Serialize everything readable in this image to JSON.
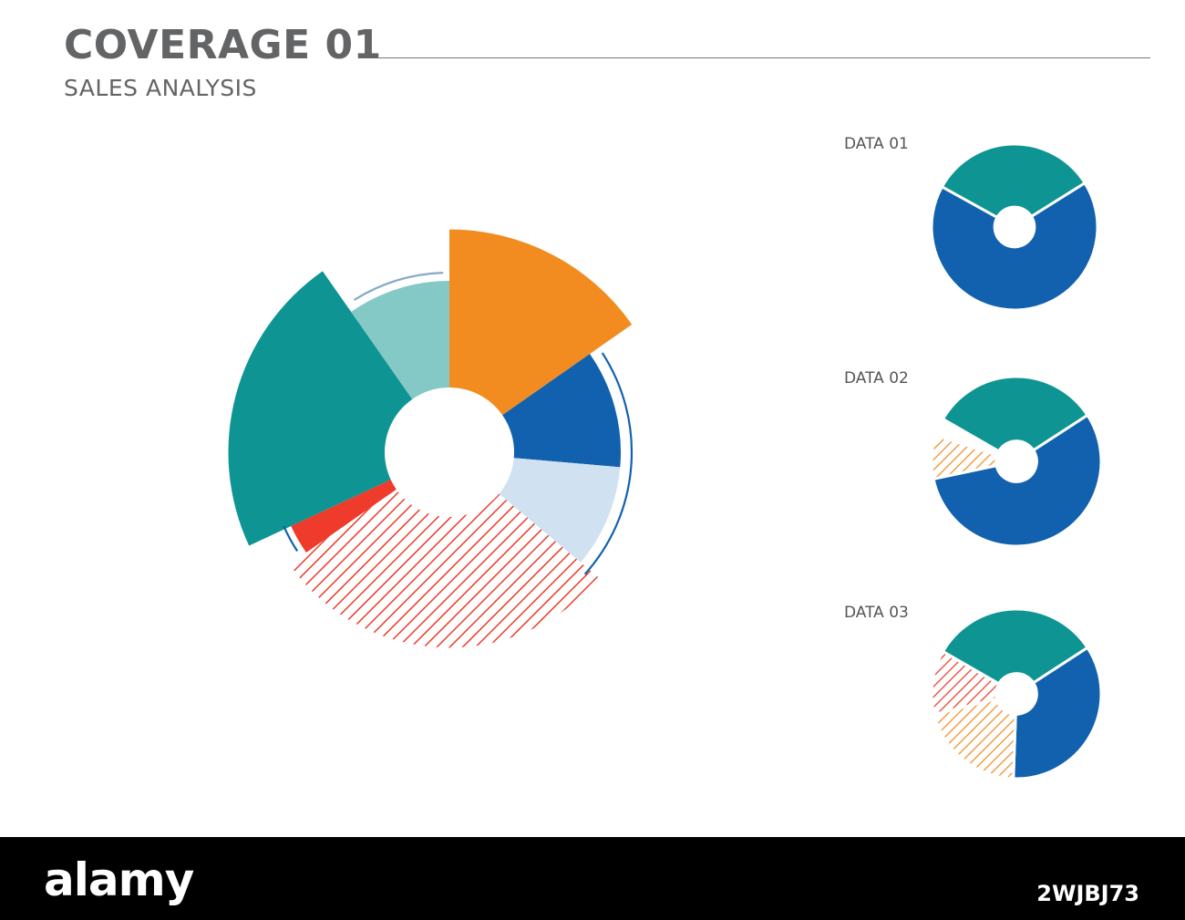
{
  "header": {
    "title": "COVERAGE 01",
    "subtitle": "SALES ANALYSIS"
  },
  "colors": {
    "text": "#636466",
    "orange": "#F28C21",
    "blue": "#1261AE",
    "light_blue": "#D0E2F1",
    "red": "#EE3B2B",
    "teal": "#0E9593",
    "light_teal": "#84C9C5"
  },
  "chart_data": [
    {
      "type": "pie",
      "variant": "polar-area-donut",
      "title": "",
      "slices": [
        {
          "start_deg": 0,
          "end_deg": 55,
          "radius_level": 1.3,
          "color": "#F28C21",
          "pattern": "solid"
        },
        {
          "start_deg": 55,
          "end_deg": 95,
          "radius_level": 1.0,
          "color": "#1261AE",
          "pattern": "solid"
        },
        {
          "start_deg": 95,
          "end_deg": 130,
          "radius_level": 1.0,
          "color": "#D0E2F1",
          "pattern": "solid"
        },
        {
          "start_deg": 130,
          "end_deg": 235,
          "radius_level": 1.14,
          "color": "#EE3B2B",
          "pattern": "hatched"
        },
        {
          "start_deg": 235,
          "end_deg": 245,
          "radius_level": 1.02,
          "color": "#EE3B2B",
          "pattern": "solid"
        },
        {
          "start_deg": 245,
          "end_deg": 325,
          "radius_level": 1.29,
          "color": "#0E9593",
          "pattern": "solid"
        },
        {
          "start_deg": 325,
          "end_deg": 360,
          "radius_level": 1.0,
          "color": "#84C9C5",
          "pattern": "solid"
        }
      ]
    },
    {
      "type": "pie",
      "variant": "donut",
      "label": "DATA 01",
      "slices": [
        {
          "start_deg": -61,
          "end_deg": 58,
          "color": "#0E9593",
          "pattern": "solid"
        },
        {
          "start_deg": 58,
          "end_deg": 299,
          "color": "#1261AE",
          "pattern": "solid"
        }
      ]
    },
    {
      "type": "pie",
      "variant": "donut",
      "label": "DATA 02",
      "slices": [
        {
          "start_deg": -60,
          "end_deg": 57,
          "color": "#0E9593",
          "pattern": "solid"
        },
        {
          "start_deg": 57,
          "end_deg": 258,
          "color": "#1261AE",
          "pattern": "solid"
        },
        {
          "start_deg": 258,
          "end_deg": 288,
          "color": "#F28C21",
          "pattern": "hatched"
        }
      ]
    },
    {
      "type": "pie",
      "variant": "donut",
      "label": "DATA 03",
      "slices": [
        {
          "start_deg": -60,
          "end_deg": 57,
          "color": "#0E9593",
          "pattern": "solid"
        },
        {
          "start_deg": 57,
          "end_deg": 182,
          "color": "#1261AE",
          "pattern": "solid"
        },
        {
          "start_deg": 182,
          "end_deg": 256,
          "color": "#F28C21",
          "pattern": "hatched"
        },
        {
          "start_deg": 256,
          "end_deg": 300,
          "color": "#EE3B2B",
          "pattern": "hatched"
        }
      ]
    }
  ],
  "watermark": {
    "logo": "alamy",
    "image_id": "2WJBJ73"
  }
}
